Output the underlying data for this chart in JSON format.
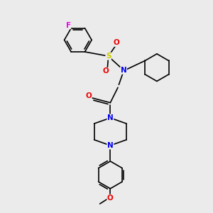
{
  "background_color": "#ebebeb",
  "atom_colors": {
    "C": "#000000",
    "N": "#0000ee",
    "O": "#ee0000",
    "S": "#cccc00",
    "F": "#ee00ee"
  },
  "bond_color": "#000000",
  "figsize": [
    3.0,
    3.0
  ],
  "dpi": 100
}
